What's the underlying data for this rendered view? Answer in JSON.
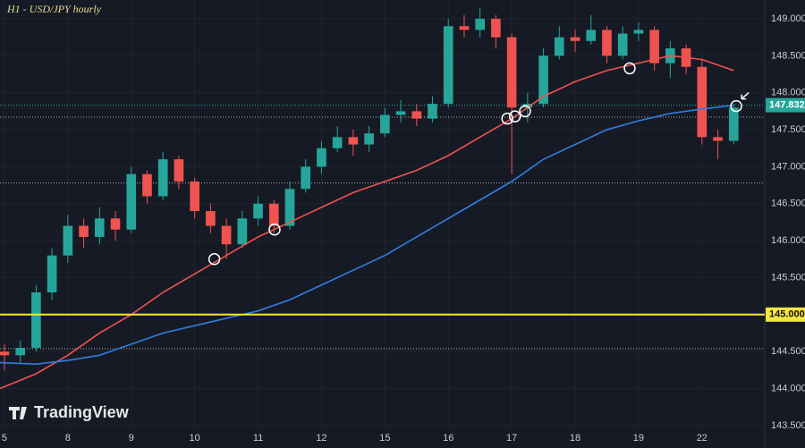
{
  "chart_data": {
    "type": "candlestick",
    "title": "H1 - USD/JPY hourly",
    "watermark": "TradingView",
    "up_color": "#26a69a",
    "down_color": "#ef5350",
    "x": [
      0,
      0.25,
      0.5,
      0.75,
      1,
      1.25,
      1.5,
      1.75,
      2,
      2.25,
      2.5,
      2.75,
      3,
      3.25,
      3.5,
      3.75,
      4,
      4.25,
      4.5,
      4.75,
      5,
      5.25,
      5.5,
      5.75,
      6,
      6.25,
      6.5,
      6.75,
      7,
      7.25,
      7.5,
      7.75,
      8,
      8.25,
      8.5,
      8.75,
      9,
      9.25,
      9.5,
      9.75,
      10,
      10.25,
      10.5,
      10.75,
      11,
      11.25,
      11.5
    ],
    "open": [
      144.5,
      144.45,
      144.55,
      145.3,
      145.8,
      146.2,
      146.05,
      146.3,
      146.15,
      146.9,
      146.6,
      147.1,
      146.8,
      146.4,
      146.2,
      145.95,
      146.3,
      146.5,
      146.2,
      146.7,
      147.0,
      147.25,
      147.4,
      147.3,
      147.45,
      147.7,
      147.75,
      147.65,
      147.85,
      148.9,
      148.85,
      149.0,
      148.75,
      147.8,
      147.85,
      148.5,
      148.75,
      148.7,
      148.85,
      148.5,
      148.8,
      148.85,
      148.4,
      148.6,
      148.35,
      147.4,
      147.35
    ],
    "high": [
      144.6,
      144.65,
      145.4,
      145.9,
      146.35,
      146.3,
      146.45,
      146.4,
      147.0,
      146.95,
      147.2,
      147.15,
      146.85,
      146.5,
      146.3,
      146.4,
      146.6,
      146.55,
      146.8,
      147.1,
      147.35,
      147.55,
      147.5,
      147.55,
      147.8,
      147.9,
      147.85,
      147.95,
      149.0,
      149.05,
      149.15,
      149.05,
      148.8,
      148.0,
      148.6,
      148.9,
      148.85,
      149.05,
      148.9,
      148.9,
      148.95,
      148.9,
      148.7,
      148.65,
      148.45,
      147.5,
      147.85
    ],
    "low": [
      144.25,
      144.35,
      144.5,
      145.2,
      145.7,
      145.9,
      145.95,
      146.0,
      146.1,
      146.5,
      146.55,
      146.7,
      146.3,
      146.1,
      145.75,
      145.9,
      146.2,
      146.1,
      146.15,
      146.65,
      146.9,
      147.2,
      147.15,
      147.2,
      147.4,
      147.6,
      147.55,
      147.6,
      147.8,
      148.75,
      148.75,
      148.6,
      146.9,
      147.6,
      147.8,
      148.45,
      148.55,
      148.65,
      148.4,
      148.45,
      148.7,
      148.3,
      148.2,
      148.25,
      147.3,
      147.1,
      147.3
    ],
    "close": [
      144.45,
      144.55,
      145.3,
      145.8,
      146.2,
      146.05,
      146.3,
      146.15,
      146.9,
      146.6,
      147.1,
      146.8,
      146.4,
      146.2,
      145.95,
      146.3,
      146.5,
      146.2,
      146.7,
      147.0,
      147.25,
      147.4,
      147.3,
      147.45,
      147.7,
      147.75,
      147.65,
      147.85,
      148.9,
      148.85,
      149.0,
      148.75,
      147.8,
      147.85,
      148.5,
      148.75,
      148.7,
      148.85,
      148.5,
      148.8,
      148.85,
      148.4,
      148.6,
      148.35,
      147.4,
      147.35,
      147.8
    ],
    "overlays": [
      {
        "color": "#ef5350",
        "x": [
          -0.07,
          0.5,
          1,
          1.5,
          2,
          2.5,
          3,
          3.5,
          4,
          4.5,
          5,
          5.5,
          6,
          6.5,
          7,
          7.5,
          8,
          8.5,
          9,
          9.5,
          10,
          10.5,
          11,
          11.5
        ],
        "values": [
          144.0,
          144.2,
          144.45,
          144.75,
          145.0,
          145.3,
          145.55,
          145.8,
          146.05,
          146.25,
          146.45,
          146.65,
          146.8,
          146.95,
          147.15,
          147.4,
          147.65,
          147.95,
          148.15,
          148.3,
          148.4,
          148.5,
          148.45,
          148.3
        ]
      },
      {
        "color": "#2f7fe0",
        "x": [
          -0.07,
          0.5,
          1,
          1.5,
          2,
          2.5,
          3,
          3.5,
          4,
          4.5,
          5,
          5.5,
          6,
          6.5,
          7,
          7.5,
          8,
          8.5,
          9,
          9.5,
          10,
          10.5,
          11,
          11.5
        ],
        "values": [
          144.35,
          144.33,
          144.38,
          144.45,
          144.6,
          144.75,
          144.85,
          144.95,
          145.05,
          145.2,
          145.4,
          145.6,
          145.8,
          146.05,
          146.3,
          146.55,
          146.8,
          147.1,
          147.3,
          147.5,
          147.62,
          147.72,
          147.78,
          147.83
        ]
      }
    ],
    "levels": [
      {
        "value": 147.67,
        "color": "#b0b3bb"
      },
      {
        "value": 146.78,
        "color": "#b0b3bb"
      },
      {
        "value": 144.54,
        "color": "#b0b3bb"
      },
      {
        "value": 147.832,
        "color": "#26a69a"
      }
    ],
    "price_labels": [
      {
        "value": 147.832,
        "label": "147.832",
        "color": "#26a69a"
      },
      {
        "value": 145,
        "label": "145.000",
        "color": "#f5e642"
      }
    ],
    "markers": {
      "x": [
        3.31,
        4.26,
        7.93,
        8.05,
        8.21,
        9.86,
        11.54
      ],
      "values": [
        145.75,
        146.15,
        147.65,
        147.68,
        147.75,
        148.33,
        147.82
      ]
    },
    "xlim": [
      -0.07,
      11.99
    ],
    "ylim": [
      143.196,
      149.254
    ],
    "xticks": [
      {
        "value": 0,
        "label": "5"
      },
      {
        "value": 1,
        "label": "8"
      },
      {
        "value": 2,
        "label": "9"
      },
      {
        "value": 3,
        "label": "10"
      },
      {
        "value": 4,
        "label": "11"
      },
      {
        "value": 5,
        "label": "12"
      },
      {
        "value": 6,
        "label": "15"
      },
      {
        "value": 7,
        "label": "16"
      },
      {
        "value": 8,
        "label": "17"
      },
      {
        "value": 9,
        "label": "18"
      },
      {
        "value": 10,
        "label": "19"
      },
      {
        "value": 11,
        "label": "22"
      }
    ],
    "yticks": [
      {
        "value": 143.5,
        "label": "143.500"
      },
      {
        "value": 144,
        "label": "144.000"
      },
      {
        "value": 144.5,
        "label": "144.500"
      },
      {
        "value": 145,
        "label": "145.000"
      },
      {
        "value": 145.5,
        "label": "145.500"
      },
      {
        "value": 146,
        "label": "146.000"
      },
      {
        "value": 146.5,
        "label": "146.500"
      },
      {
        "value": 147,
        "label": "147.000"
      },
      {
        "value": 147.5,
        "label": "147.500"
      },
      {
        "value": 148,
        "label": "148.000"
      },
      {
        "value": 148.5,
        "label": "148.500"
      },
      {
        "value": 149,
        "label": "149.000"
      }
    ],
    "grid": true
  }
}
